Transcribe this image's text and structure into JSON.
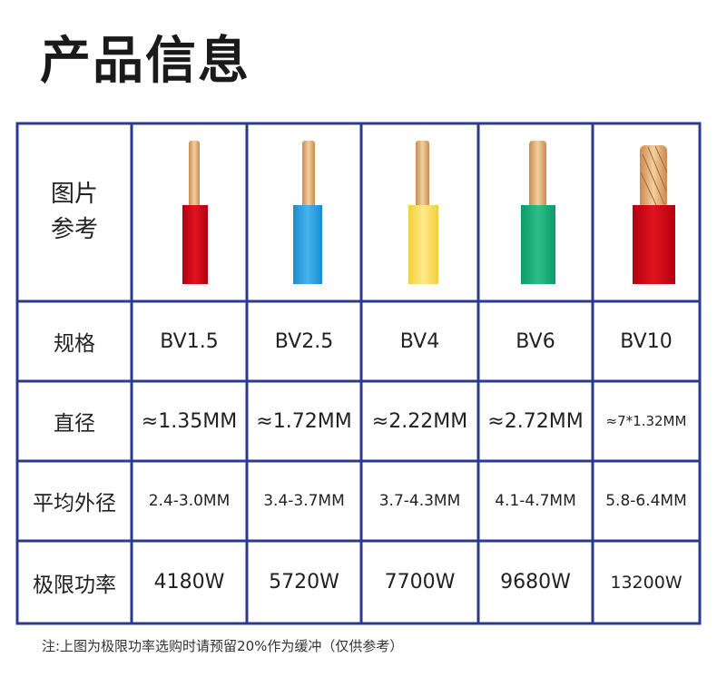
{
  "header": {
    "title": "产品信息"
  },
  "table": {
    "rows": [
      {
        "label": "图片参考"
      },
      {
        "label": "规格",
        "cells": [
          "BV1.5",
          "BV2.5",
          "BV4",
          "BV6",
          "BV10"
        ]
      },
      {
        "label": "直径",
        "cells": [
          "≈1.35MM",
          "≈1.72MM",
          "≈2.22MM",
          "≈2.72MM",
          "≈7*1.32MM"
        ]
      },
      {
        "label": "平均外径",
        "cells": [
          "2.4-3.0MM",
          "3.4-3.7MM",
          "3.7-4.3MM",
          "4.1-4.7MM",
          "5.8-6.4MM"
        ]
      },
      {
        "label": "极限功率",
        "cells": [
          "4180W",
          "5720W",
          "7700W",
          "9680W",
          "13200W"
        ]
      }
    ]
  },
  "note": "注:上图为极限功率选购时请预留20%作为缓冲（仅供参考）"
}
